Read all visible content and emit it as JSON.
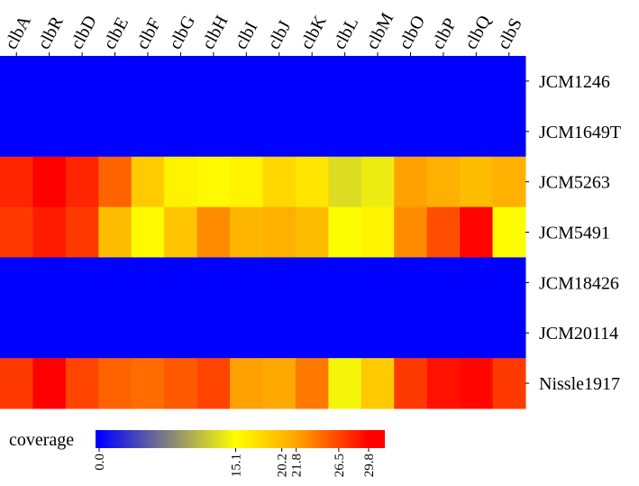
{
  "chart_data": {
    "type": "heatmap",
    "x_categories": [
      "clbA",
      "clbR",
      "clbD",
      "clbE",
      "clbF",
      "clbG",
      "clbH",
      "clbI",
      "clbJ",
      "clbK",
      "clbL",
      "clbM",
      "clbO",
      "clbP",
      "clbQ",
      "clbS"
    ],
    "y_categories": [
      "JCM1246",
      "JCM1649T",
      "JCM5263",
      "JCM5491",
      "JCM18426",
      "JCM20114",
      "Nissle1917"
    ],
    "values": [
      [
        0,
        0,
        0,
        0,
        0,
        0,
        0,
        0,
        0,
        0,
        0,
        0,
        0,
        0,
        0,
        0
      ],
      [
        0,
        0,
        0,
        0,
        0,
        0,
        0,
        0,
        0,
        0,
        0,
        0,
        0,
        0,
        0,
        0
      ],
      [
        28,
        29.8,
        28,
        25,
        19,
        16,
        15.5,
        16,
        18,
        17,
        13,
        14,
        22,
        21,
        20,
        21
      ],
      [
        27,
        28.5,
        27,
        20,
        15.5,
        19.5,
        23,
        20.5,
        21,
        20,
        15,
        16,
        23,
        26,
        29.5,
        15.3
      ],
      [
        0,
        0,
        0,
        0,
        0,
        0,
        0,
        0,
        0,
        0,
        0,
        0,
        0,
        0,
        0,
        0
      ],
      [
        0,
        0,
        0,
        0,
        0,
        0,
        0,
        0,
        0,
        0,
        0,
        0,
        0,
        0,
        0,
        0
      ],
      [
        27,
        29.8,
        26.5,
        25,
        24.5,
        25.5,
        26.5,
        22,
        21.5,
        24,
        14.5,
        19,
        27,
        29,
        29.5,
        27
      ]
    ],
    "legend_title": "coverage",
    "clim": [
      -0.4,
      31.6
    ],
    "cticks": [
      {
        "value": 0,
        "label": "0.0"
      },
      15.1,
      20.2,
      21.8,
      26.5,
      29.8
    ],
    "color_stops": [
      0,
      15.1,
      21.8,
      29.8
    ],
    "colors": [
      "#0000ff",
      "#ffff00",
      "#ffa500",
      "#ff0000"
    ]
  }
}
